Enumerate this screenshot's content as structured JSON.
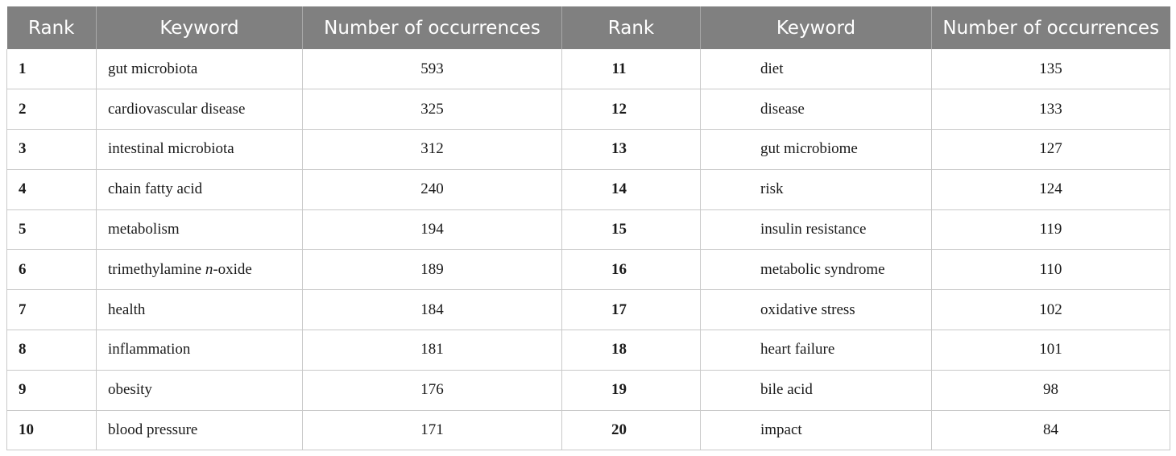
{
  "table": {
    "headers": [
      "Rank",
      "Keyword",
      "Number of occurrences",
      "Rank",
      "Keyword",
      "Number of occurrences"
    ],
    "rows": [
      {
        "rank_a": "1",
        "kw_a": "gut microbiota",
        "num_a": "593",
        "rank_b": "11",
        "kw_b": "diet",
        "num_b": "135"
      },
      {
        "rank_a": "2",
        "kw_a": "cardiovascular disease",
        "num_a": "325",
        "rank_b": "12",
        "kw_b": "disease",
        "num_b": "133"
      },
      {
        "rank_a": "3",
        "kw_a": "intestinal microbiota",
        "num_a": "312",
        "rank_b": "13",
        "kw_b": "gut microbiome",
        "num_b": "127"
      },
      {
        "rank_a": "4",
        "kw_a": "chain fatty acid",
        "num_a": "240",
        "rank_b": "14",
        "kw_b": "risk",
        "num_b": "124"
      },
      {
        "rank_a": "5",
        "kw_a": "metabolism",
        "num_a": "194",
        "rank_b": "15",
        "kw_b": "insulin resistance",
        "num_b": "119"
      },
      {
        "rank_a": "6",
        "kw_a_pre": "trimethylamine ",
        "kw_a_it": "n",
        "kw_a_post": "-oxide",
        "num_a": "189",
        "rank_b": "16",
        "kw_b": "metabolic syndrome",
        "num_b": "110"
      },
      {
        "rank_a": "7",
        "kw_a": "health",
        "num_a": "184",
        "rank_b": "17",
        "kw_b": "oxidative stress",
        "num_b": "102"
      },
      {
        "rank_a": "8",
        "kw_a": "inflammation",
        "num_a": "181",
        "rank_b": "18",
        "kw_b": "heart failure",
        "num_b": "101"
      },
      {
        "rank_a": "9",
        "kw_a": "obesity",
        "num_a": "176",
        "rank_b": "19",
        "kw_b": "bile acid",
        "num_b": "98"
      },
      {
        "rank_a": "10",
        "kw_a": "blood pressure",
        "num_a": "171",
        "rank_b": "20",
        "kw_b": "impact",
        "num_b": "84"
      }
    ]
  },
  "colors": {
    "header_bg": "#808080",
    "header_text": "#ffffff",
    "border": "#c9c9c9"
  }
}
